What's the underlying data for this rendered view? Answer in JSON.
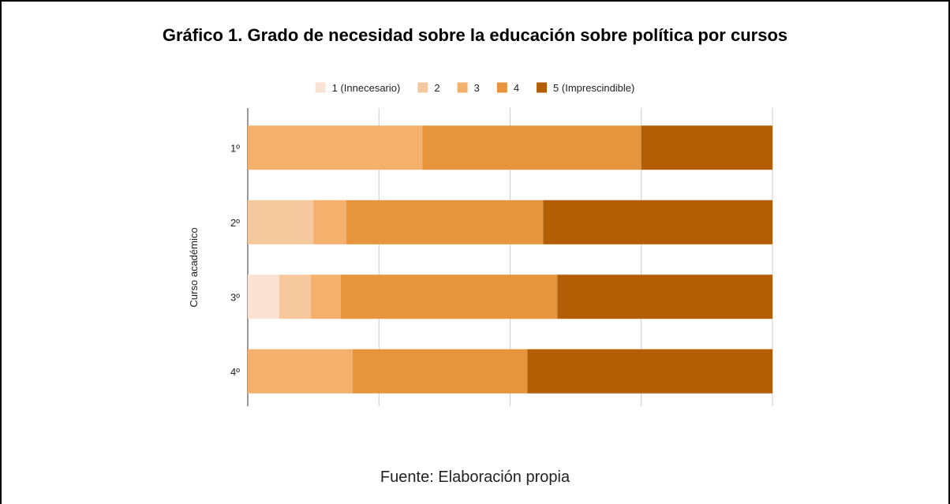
{
  "chart_data": {
    "type": "bar",
    "orientation": "horizontal",
    "stacked": "percent",
    "title": "Gráfico 1. Grado de necesidad sobre la educación sobre política por cursos",
    "ylabel": "Curso académico",
    "categories": [
      "1º",
      "2º",
      "3º",
      "4º"
    ],
    "series": [
      {
        "name": "1 (Innecesario)",
        "color": "#fae3d2",
        "values": [
          0,
          0,
          6,
          0
        ]
      },
      {
        "name": "2",
        "color": "#f5c89e",
        "values": [
          0,
          12.5,
          6,
          0
        ]
      },
      {
        "name": "3",
        "color": "#f4b06d",
        "values": [
          33.3,
          6.3,
          5.7,
          20
        ]
      },
      {
        "name": "4",
        "color": "#e6953c",
        "values": [
          41.7,
          37.5,
          41.3,
          33.3
        ]
      },
      {
        "name": "5 (Imprescindible)",
        "color": "#b35e05",
        "values": [
          25,
          43.7,
          41,
          46.7
        ]
      }
    ],
    "xlim": [
      0,
      100
    ],
    "grid": true,
    "legend": "top"
  },
  "footer": {
    "source": "Fuente: Elaboración propia"
  }
}
